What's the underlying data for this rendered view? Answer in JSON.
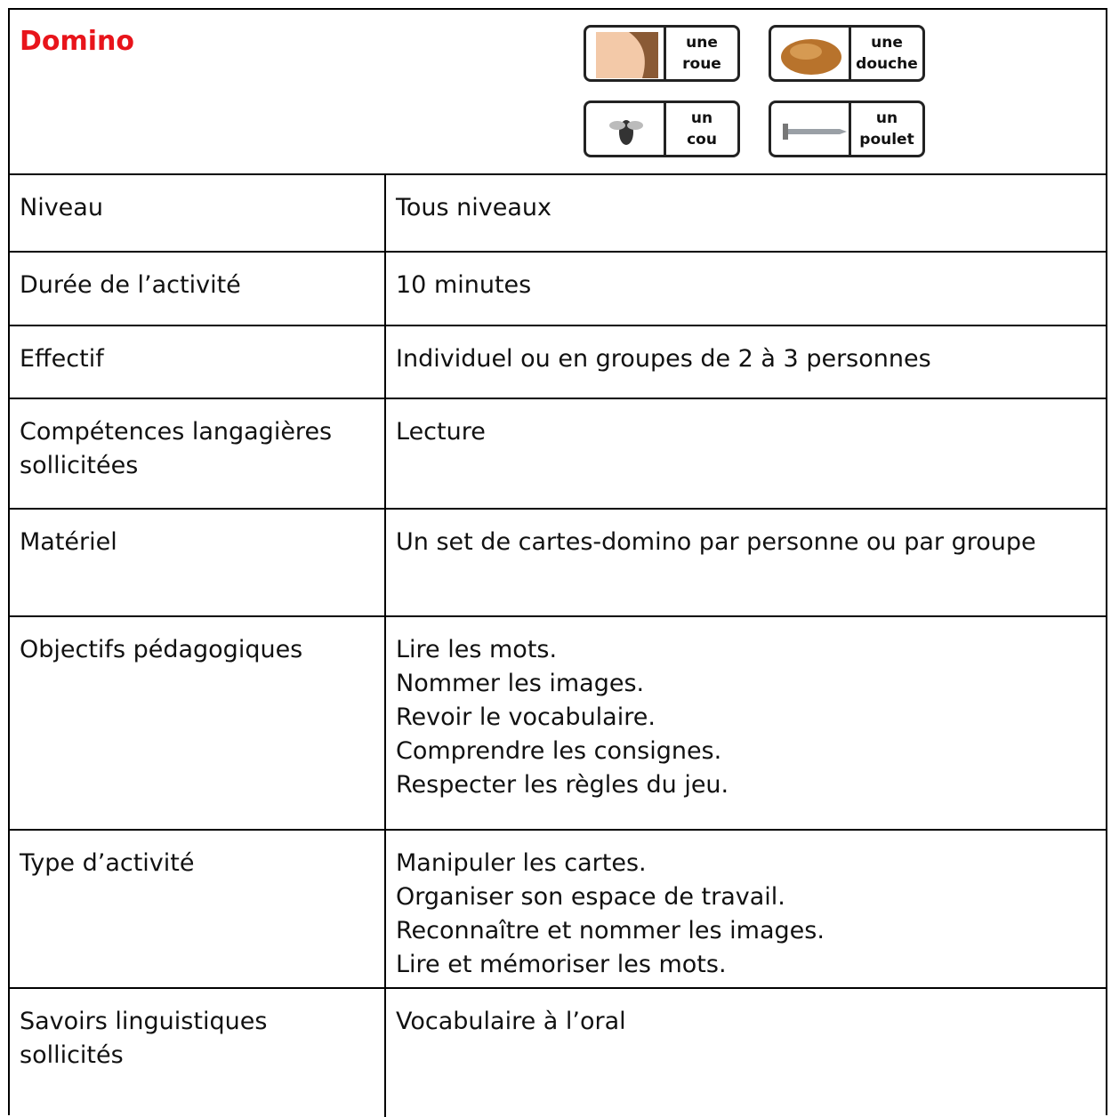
{
  "header": {
    "title": "Domino",
    "dominoes": [
      {
        "lines": [
          "une",
          "roue"
        ]
      },
      {
        "lines": [
          "une",
          "douche"
        ]
      },
      {
        "lines": [
          "un",
          "cou"
        ]
      },
      {
        "lines": [
          "un",
          "poulet"
        ]
      }
    ]
  },
  "table": {
    "rows": [
      {
        "label": "Niveau",
        "value": [
          "Tous niveaux"
        ]
      },
      {
        "label": "Durée de l’activité",
        "value": [
          "10 minutes"
        ]
      },
      {
        "label": "Effectif",
        "value": [
          "Individuel ou en groupes de 2 à 3 personnes"
        ]
      },
      {
        "label": "Compétences langagières sollicitées",
        "value": [
          "Lecture"
        ]
      },
      {
        "label": "Matériel",
        "value": [
          "Un set de cartes-domino par personne ou par groupe"
        ]
      },
      {
        "label": "Objectifs pédagogiques",
        "value": [
          "Lire les mots.",
          "Nommer les images.",
          "Revoir le vocabulaire.",
          "Comprendre les consignes.",
          "Respecter les règles du jeu."
        ]
      },
      {
        "label": "Type d’activité",
        "value": [
          "Manipuler les cartes.",
          "Organiser son espace de travail.",
          "Reconnaître et nommer les images.",
          "Lire et mémoriser les mots."
        ]
      },
      {
        "label": "Savoirs linguistiques sollicités",
        "value": [
          "Vocabulaire à l’oral"
        ]
      }
    ]
  }
}
